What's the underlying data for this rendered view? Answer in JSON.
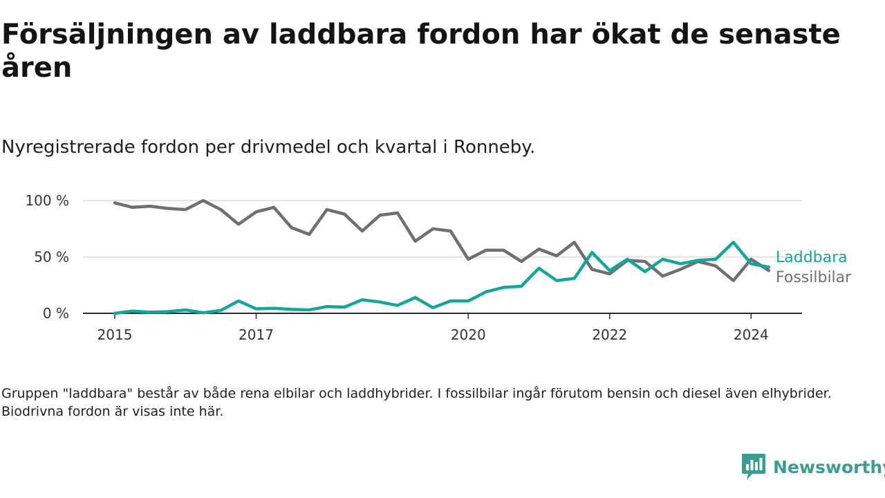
{
  "header": {
    "title": "Försäljningen av laddbara fordon har ökat de senaste åren",
    "subtitle": "Nyregistrerade fordon per drivmedel och kvartal i Ronneby."
  },
  "chart_data": {
    "type": "line",
    "title": "Försäljningen av laddbara fordon har ökat de senaste åren",
    "subtitle": "Nyregistrerade fordon per drivmedel och kvartal i Ronneby.",
    "xlabel": "",
    "ylabel": "",
    "unit": "%",
    "ylim": [
      0,
      100
    ],
    "yticks": [
      {
        "value": 0,
        "label": "0 %"
      },
      {
        "value": 50,
        "label": "50 %"
      },
      {
        "value": 100,
        "label": "100 %"
      }
    ],
    "xlim": [
      2015.0,
      2024.75
    ],
    "xticks": [
      {
        "value": 2015,
        "label": "2015"
      },
      {
        "value": 2017,
        "label": "2017"
      },
      {
        "value": 2020,
        "label": "2020"
      },
      {
        "value": 2022,
        "label": "2022"
      },
      {
        "value": 2024,
        "label": "2024"
      }
    ],
    "grid": true,
    "legend_position": "right, at line ends",
    "x": [
      2015.0,
      2015.25,
      2015.5,
      2015.75,
      2016.0,
      2016.25,
      2016.5,
      2016.75,
      2017.0,
      2017.25,
      2017.5,
      2017.75,
      2018.0,
      2018.25,
      2018.5,
      2018.75,
      2019.0,
      2019.25,
      2019.5,
      2019.75,
      2020.0,
      2020.25,
      2020.5,
      2020.75,
      2021.0,
      2021.25,
      2021.5,
      2021.75,
      2022.0,
      2022.25,
      2022.5,
      2022.75,
      2023.0,
      2023.25,
      2023.5,
      2023.75,
      2024.0,
      2024.25
    ],
    "series": [
      {
        "name": "Fossilbilar",
        "color": "#6f6e73",
        "values": [
          98,
          94,
          95,
          93,
          92,
          100,
          92,
          79,
          90,
          94,
          76,
          70,
          92,
          88,
          73,
          87,
          89,
          64,
          75,
          73,
          48,
          56,
          56,
          46,
          57,
          51,
          63,
          39,
          35,
          47,
          46,
          33,
          39,
          46,
          42,
          29,
          48,
          38
        ]
      },
      {
        "name": "Laddbara",
        "color": "#14a69a",
        "values": [
          0,
          2,
          1,
          1.5,
          3,
          0.5,
          2.5,
          11,
          4,
          4.5,
          3.5,
          3,
          6,
          5.5,
          12,
          10,
          7,
          14,
          5,
          11,
          11,
          19,
          23,
          24,
          40,
          29,
          31,
          54,
          38,
          48,
          37,
          48,
          44,
          47,
          48,
          63,
          44,
          41
        ]
      }
    ]
  },
  "footnote": "Gruppen \"laddbara\" består av både rena elbilar och laddhybrider. I fossilbilar ingår förutom bensin och diesel även elhybrider. Biodrivna fordon är visas inte här.",
  "brand": {
    "name": "Newsworthy",
    "logo_icon": "newsworthy-logo-icon",
    "color": "#3a9c94"
  }
}
